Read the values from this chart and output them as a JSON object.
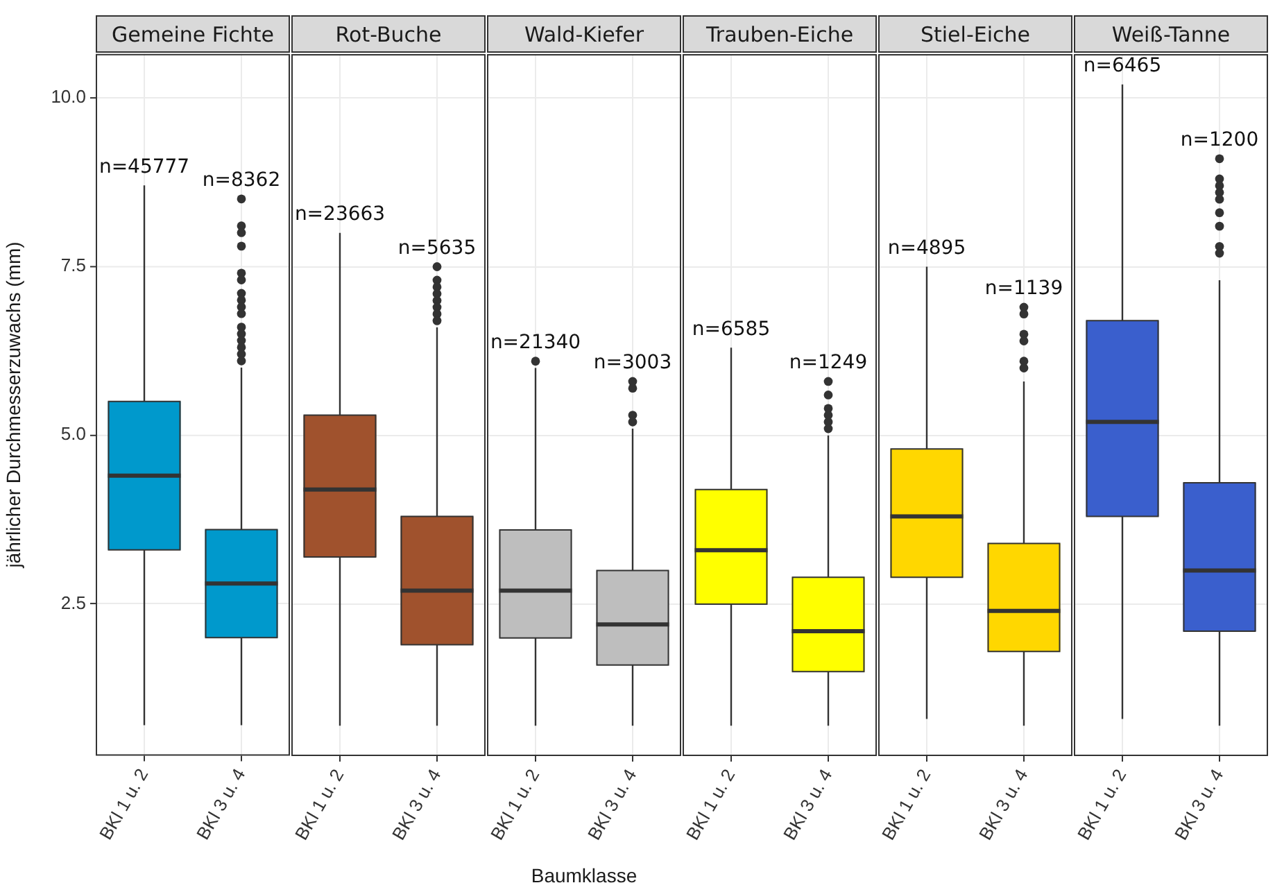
{
  "chart_data": [
    {
      "type": "box",
      "title": "Gemeine Fichte",
      "ylabel": "jährlicher Durchmesserzuwachs (mm)",
      "categories": [
        "BKl 1 u. 2",
        "BKl 3 u. 4"
      ],
      "color": "#0099cc",
      "ylim": [
        0.25,
        10.65
      ],
      "yticks": [
        {
          "value": 2.5,
          "label": "2.5"
        },
        {
          "value": 5,
          "label": "5.0"
        },
        {
          "value": 7.5,
          "label": "7.5"
        },
        {
          "value": 10,
          "label": "10.0"
        }
      ],
      "grid": true,
      "boxes": [
        {
          "low": 0.7,
          "q1": 3.3,
          "median": 4.4,
          "q3": 5.5,
          "high": 8.7
        },
        {
          "low": 0.7,
          "q1": 2.0,
          "median": 2.8,
          "q3": 3.6,
          "high": 6.0,
          "outliers": [
            8.5,
            8.1,
            8.0,
            7.8,
            7.4,
            7.3,
            7.1,
            7.0,
            6.9,
            6.8,
            6.6,
            6.5,
            6.4,
            6.3,
            6.2,
            6.1
          ]
        }
      ],
      "annotations": [
        "n=45777",
        "n=8362"
      ]
    },
    {
      "type": "box",
      "title": "Rot-Buche",
      "categories": [
        "BKl 1 u. 2",
        "BKl 3 u. 4"
      ],
      "color": "#a0522d",
      "ylim": [
        0.25,
        10.65
      ],
      "yticks": [
        2.5,
        5,
        7.5,
        10
      ],
      "grid": true,
      "tick_labels": "x",
      "boxes": [
        {
          "low": 0.7,
          "q1": 3.2,
          "median": 4.2,
          "q3": 5.3,
          "high": 8.0
        },
        {
          "low": 0.7,
          "q1": 1.9,
          "median": 2.7,
          "q3": 3.8,
          "high": 6.6,
          "outliers": [
            7.5,
            7.3,
            7.2,
            7.1,
            7.0,
            6.9,
            6.8,
            6.7
          ]
        }
      ],
      "annotations": [
        "n=23663",
        "n=5635"
      ]
    },
    {
      "type": "box",
      "title": "Wald-Kiefer",
      "xlabel": "Baumklasse",
      "categories": [
        "BKl 1 u. 2",
        "BKl 3 u. 4"
      ],
      "color": "#bebebe",
      "ylim": [
        0.25,
        10.65
      ],
      "yticks": [
        2.5,
        5,
        7.5,
        10
      ],
      "grid": true,
      "tick_labels": "x",
      "boxes": [
        {
          "low": 0.7,
          "q1": 2.0,
          "median": 2.7,
          "q3": 3.6,
          "high": 6.0,
          "outliers": [
            6.1
          ]
        },
        {
          "low": 0.7,
          "q1": 1.6,
          "median": 2.2,
          "q3": 3.0,
          "high": 5.1,
          "outliers": [
            5.8,
            5.7,
            5.3,
            5.2
          ]
        }
      ],
      "annotations": [
        "n=21340",
        "n=3003"
      ]
    },
    {
      "type": "box",
      "title": "Trauben-Eiche",
      "categories": [
        "BKl 1 u. 2",
        "BKl 3 u. 4"
      ],
      "color": "#ffff00",
      "ylim": [
        0.25,
        10.65
      ],
      "yticks": [
        2.5,
        5,
        7.5,
        10
      ],
      "grid": true,
      "tick_labels": "x",
      "boxes": [
        {
          "low": 0.7,
          "q1": 2.5,
          "median": 3.3,
          "q3": 4.2,
          "high": 6.3
        },
        {
          "low": 0.7,
          "q1": 1.5,
          "median": 2.1,
          "q3": 2.9,
          "high": 5.0,
          "outliers": [
            5.8,
            5.6,
            5.4,
            5.3,
            5.2,
            5.1
          ]
        }
      ],
      "annotations": [
        "n=6585",
        "n=1249"
      ]
    },
    {
      "type": "box",
      "title": "Stiel-Eiche",
      "categories": [
        "BKl 1 u. 2",
        "BKl 3 u. 4"
      ],
      "color": "#ffd700",
      "ylim": [
        0.25,
        10.65
      ],
      "yticks": [
        2.5,
        5,
        7.5,
        10
      ],
      "grid": true,
      "tick_labels": "x",
      "boxes": [
        {
          "low": 0.8,
          "q1": 2.9,
          "median": 3.8,
          "q3": 4.8,
          "high": 7.5
        },
        {
          "low": 0.7,
          "q1": 1.8,
          "median": 2.4,
          "q3": 3.4,
          "high": 5.8,
          "outliers": [
            6.9,
            6.8,
            6.5,
            6.4,
            6.1,
            6.0
          ]
        }
      ],
      "annotations": [
        "n=4895",
        "n=1139"
      ]
    },
    {
      "type": "box",
      "title": "Weiß-Tanne",
      "categories": [
        "BKl 1 u. 2",
        "BKl 3 u. 4"
      ],
      "color": "#3a5fcd",
      "ylim": [
        0.25,
        10.65
      ],
      "yticks": [
        2.5,
        5,
        7.5,
        10
      ],
      "grid": true,
      "tick_labels": "x",
      "boxes": [
        {
          "low": 0.8,
          "q1": 3.8,
          "median": 5.2,
          "q3": 6.7,
          "high": 10.2
        },
        {
          "low": 0.7,
          "q1": 2.1,
          "median": 3.0,
          "q3": 4.3,
          "high": 7.3,
          "outliers": [
            9.1,
            8.8,
            8.7,
            8.6,
            8.5,
            8.3,
            8.1,
            7.8,
            7.7
          ]
        }
      ],
      "annotations": [
        "n=6465",
        "n=1200"
      ]
    }
  ]
}
